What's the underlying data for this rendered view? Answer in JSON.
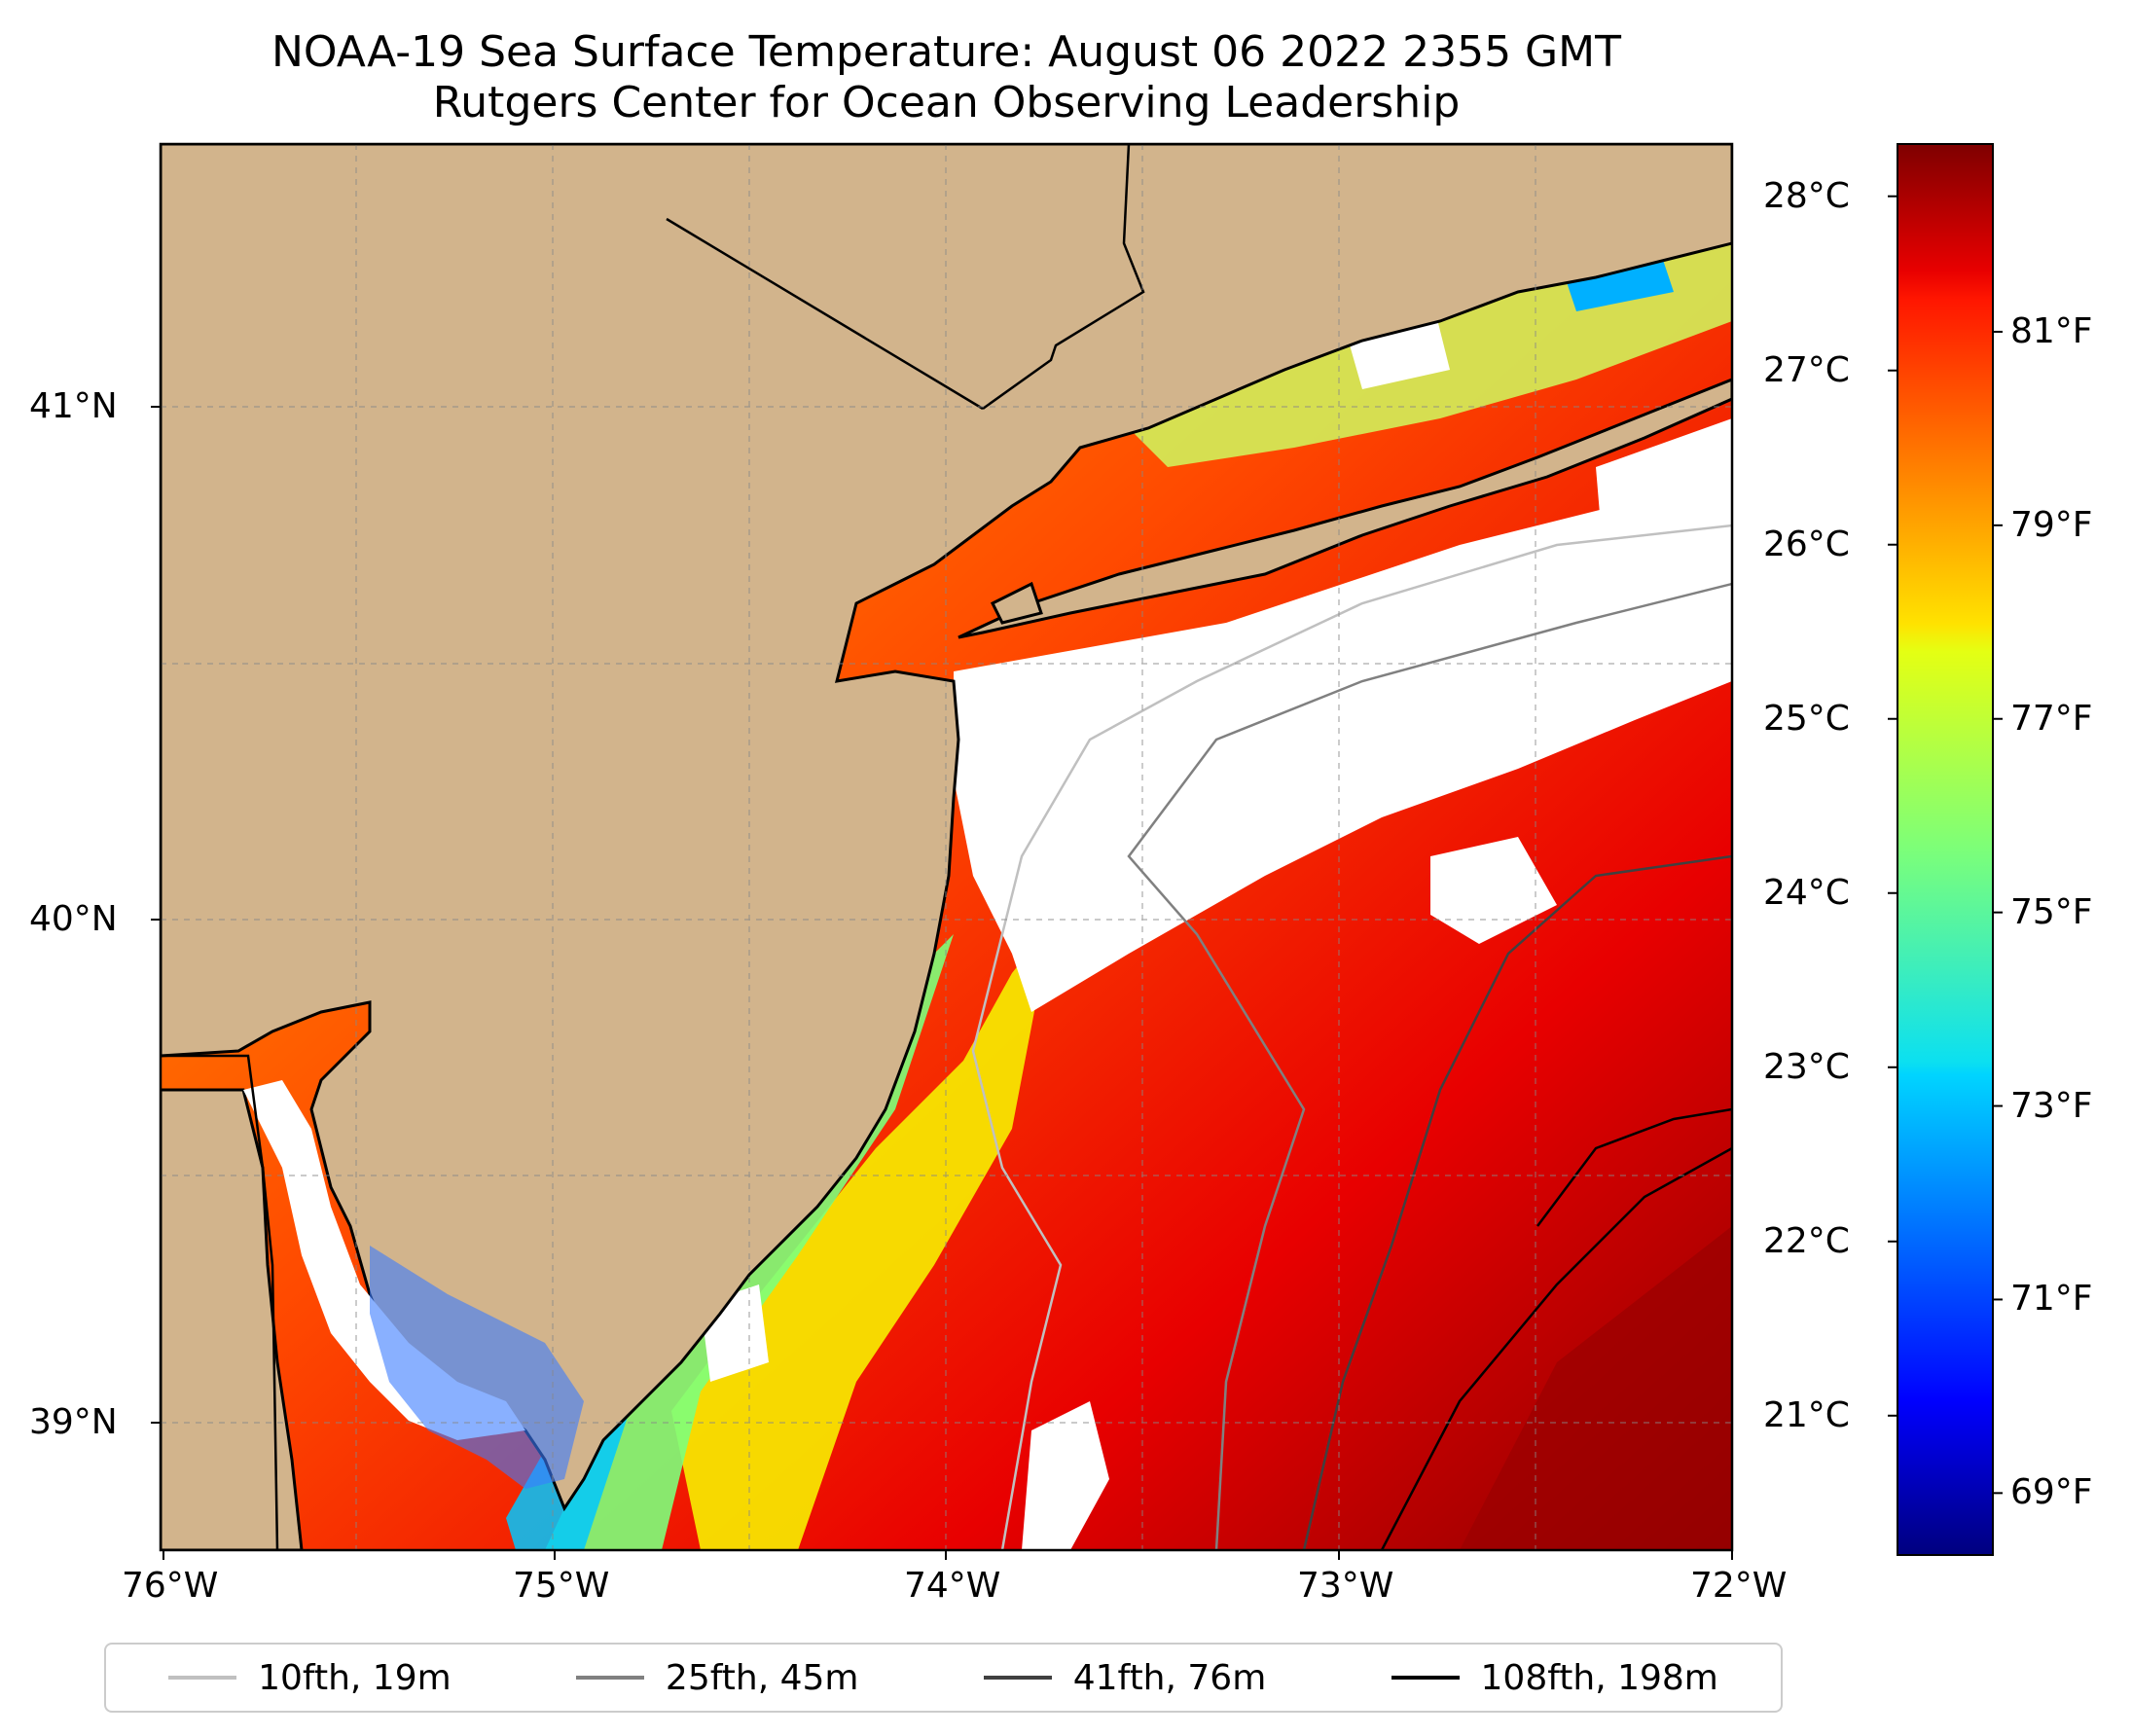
{
  "title": {
    "line1": "NOAA-19 Sea Surface Temperature: August 06 2022 2355 GMT",
    "line2": "Rutgers Center for Ocean Observing Leadership"
  },
  "map": {
    "lon_range": [
      -76,
      -72
    ],
    "lat_range": [
      38.7,
      41.5
    ],
    "lon_ticks": [
      "76°W",
      "75°W",
      "74°W",
      "73°W",
      "72°W"
    ],
    "lat_ticks": [
      "41°N",
      "40°N",
      "39°N"
    ],
    "land_color": "#d2b48c",
    "no_data_color": "#ffffff"
  },
  "colorbar": {
    "colormap": "jet",
    "celsius_range": [
      20.2,
      28.3
    ],
    "celsius_ticks": [
      "21°C",
      "22°C",
      "23°C",
      "24°C",
      "25°C",
      "26°C",
      "27°C",
      "28°C"
    ],
    "fahrenheit_ticks": [
      "69°F",
      "71°F",
      "73°F",
      "75°F",
      "77°F",
      "79°F",
      "81°F"
    ]
  },
  "legend": [
    {
      "label": "10fth, 19m",
      "color": "#c0c0c0"
    },
    {
      "label": "25fth, 45m",
      "color": "#808080"
    },
    {
      "label": "41fth, 76m",
      "color": "#404040"
    },
    {
      "label": "108fth, 198m",
      "color": "#000000"
    }
  ]
}
